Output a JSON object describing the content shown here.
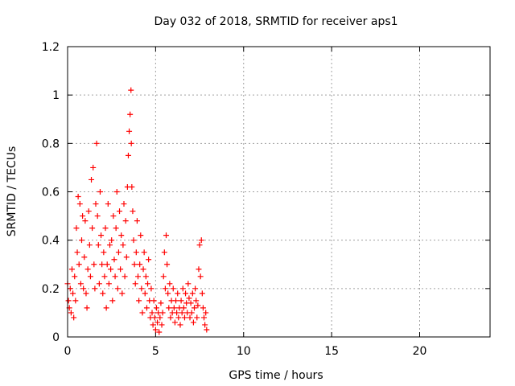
{
  "chart_data": {
    "type": "scatter",
    "title": "Day 032 of 2018, SRMTID for receiver aps1",
    "xlabel": "GPS time / hours",
    "ylabel": "SRMTID / TECUs",
    "xlim": [
      0,
      24
    ],
    "ylim": [
      0,
      1.2
    ],
    "xticks": [
      "0",
      "5",
      "10",
      "15",
      "20"
    ],
    "yticks": [
      "0",
      "0.2",
      "0.4",
      "0.6",
      "0.8",
      "1",
      "1.2"
    ],
    "grid": true,
    "marker": "plus",
    "series": [
      {
        "name": "aps1",
        "color": "#ff0000",
        "points": [
          [
            0.0,
            0.22
          ],
          [
            0.05,
            0.15
          ],
          [
            0.1,
            0.12
          ],
          [
            0.15,
            0.2
          ],
          [
            0.2,
            0.1
          ],
          [
            0.25,
            0.28
          ],
          [
            0.3,
            0.18
          ],
          [
            0.35,
            0.08
          ],
          [
            0.4,
            0.25
          ],
          [
            0.45,
            0.15
          ],
          [
            0.5,
            0.45
          ],
          [
            0.55,
            0.35
          ],
          [
            0.6,
            0.58
          ],
          [
            0.65,
            0.3
          ],
          [
            0.7,
            0.55
          ],
          [
            0.75,
            0.22
          ],
          [
            0.8,
            0.4
          ],
          [
            0.85,
            0.5
          ],
          [
            0.9,
            0.2
          ],
          [
            0.95,
            0.33
          ],
          [
            1.0,
            0.48
          ],
          [
            1.05,
            0.18
          ],
          [
            1.1,
            0.12
          ],
          [
            1.15,
            0.28
          ],
          [
            1.2,
            0.52
          ],
          [
            1.25,
            0.38
          ],
          [
            1.3,
            0.25
          ],
          [
            1.35,
            0.65
          ],
          [
            1.4,
            0.45
          ],
          [
            1.45,
            0.7
          ],
          [
            1.5,
            0.3
          ],
          [
            1.55,
            0.2
          ],
          [
            1.6,
            0.55
          ],
          [
            1.65,
            0.8
          ],
          [
            1.7,
            0.5
          ],
          [
            1.75,
            0.38
          ],
          [
            1.8,
            0.22
          ],
          [
            1.85,
            0.6
          ],
          [
            1.9,
            0.42
          ],
          [
            1.95,
            0.3
          ],
          [
            2.0,
            0.18
          ],
          [
            2.05,
            0.35
          ],
          [
            2.1,
            0.25
          ],
          [
            2.15,
            0.45
          ],
          [
            2.2,
            0.12
          ],
          [
            2.25,
            0.3
          ],
          [
            2.3,
            0.55
          ],
          [
            2.35,
            0.22
          ],
          [
            2.4,
            0.38
          ],
          [
            2.45,
            0.28
          ],
          [
            2.5,
            0.4
          ],
          [
            2.55,
            0.15
          ],
          [
            2.6,
            0.5
          ],
          [
            2.65,
            0.32
          ],
          [
            2.7,
            0.25
          ],
          [
            2.75,
            0.45
          ],
          [
            2.8,
            0.6
          ],
          [
            2.85,
            0.2
          ],
          [
            2.9,
            0.35
          ],
          [
            2.95,
            0.52
          ],
          [
            3.0,
            0.28
          ],
          [
            3.05,
            0.42
          ],
          [
            3.1,
            0.18
          ],
          [
            3.15,
            0.38
          ],
          [
            3.2,
            0.55
          ],
          [
            3.25,
            0.25
          ],
          [
            3.3,
            0.48
          ],
          [
            3.35,
            0.33
          ],
          [
            3.4,
            0.62
          ],
          [
            3.45,
            0.75
          ],
          [
            3.5,
            0.85
          ],
          [
            3.55,
            0.92
          ],
          [
            3.6,
            1.02
          ],
          [
            3.62,
            0.8
          ],
          [
            3.65,
            0.62
          ],
          [
            3.7,
            0.52
          ],
          [
            3.75,
            0.4
          ],
          [
            3.8,
            0.3
          ],
          [
            3.85,
            0.22
          ],
          [
            3.9,
            0.35
          ],
          [
            3.95,
            0.48
          ],
          [
            4.0,
            0.25
          ],
          [
            4.05,
            0.15
          ],
          [
            4.1,
            0.3
          ],
          [
            4.15,
            0.42
          ],
          [
            4.2,
            0.2
          ],
          [
            4.25,
            0.1
          ],
          [
            4.3,
            0.28
          ],
          [
            4.35,
            0.35
          ],
          [
            4.4,
            0.18
          ],
          [
            4.45,
            0.25
          ],
          [
            4.5,
            0.12
          ],
          [
            4.55,
            0.22
          ],
          [
            4.6,
            0.32
          ],
          [
            4.65,
            0.15
          ],
          [
            4.7,
            0.08
          ],
          [
            4.75,
            0.2
          ],
          [
            4.8,
            0.1
          ],
          [
            4.85,
            0.05
          ],
          [
            4.9,
            0.15
          ],
          [
            4.95,
            0.08
          ],
          [
            5.0,
            0.03
          ],
          [
            5.05,
            0.12
          ],
          [
            5.1,
            0.06
          ],
          [
            5.15,
            0.1
          ],
          [
            5.2,
            0.02
          ],
          [
            5.25,
            0.08
          ],
          [
            5.3,
            0.14
          ],
          [
            5.35,
            0.05
          ],
          [
            5.4,
            0.1
          ],
          [
            5.45,
            0.25
          ],
          [
            5.5,
            0.35
          ],
          [
            5.55,
            0.2
          ],
          [
            5.6,
            0.42
          ],
          [
            5.65,
            0.3
          ],
          [
            5.7,
            0.18
          ],
          [
            5.75,
            0.12
          ],
          [
            5.8,
            0.22
          ],
          [
            5.85,
            0.08
          ],
          [
            5.9,
            0.15
          ],
          [
            5.95,
            0.1
          ],
          [
            6.0,
            0.2
          ],
          [
            6.05,
            0.12
          ],
          [
            6.1,
            0.06
          ],
          [
            6.15,
            0.15
          ],
          [
            6.2,
            0.1
          ],
          [
            6.25,
            0.18
          ],
          [
            6.3,
            0.08
          ],
          [
            6.35,
            0.12
          ],
          [
            6.4,
            0.05
          ],
          [
            6.45,
            0.15
          ],
          [
            6.5,
            0.1
          ],
          [
            6.55,
            0.2
          ],
          [
            6.6,
            0.12
          ],
          [
            6.65,
            0.08
          ],
          [
            6.7,
            0.18
          ],
          [
            6.75,
            0.14
          ],
          [
            6.8,
            0.1
          ],
          [
            6.85,
            0.22
          ],
          [
            6.9,
            0.16
          ],
          [
            6.95,
            0.08
          ],
          [
            7.0,
            0.14
          ],
          [
            7.05,
            0.1
          ],
          [
            7.1,
            0.18
          ],
          [
            7.15,
            0.06
          ],
          [
            7.2,
            0.12
          ],
          [
            7.25,
            0.2
          ],
          [
            7.3,
            0.15
          ],
          [
            7.35,
            0.08
          ],
          [
            7.4,
            0.13
          ],
          [
            7.45,
            0.28
          ],
          [
            7.5,
            0.38
          ],
          [
            7.55,
            0.25
          ],
          [
            7.6,
            0.4
          ],
          [
            7.65,
            0.18
          ],
          [
            7.7,
            0.12
          ],
          [
            7.75,
            0.08
          ],
          [
            7.8,
            0.05
          ],
          [
            7.85,
            0.1
          ],
          [
            7.9,
            0.03
          ]
        ]
      }
    ]
  }
}
